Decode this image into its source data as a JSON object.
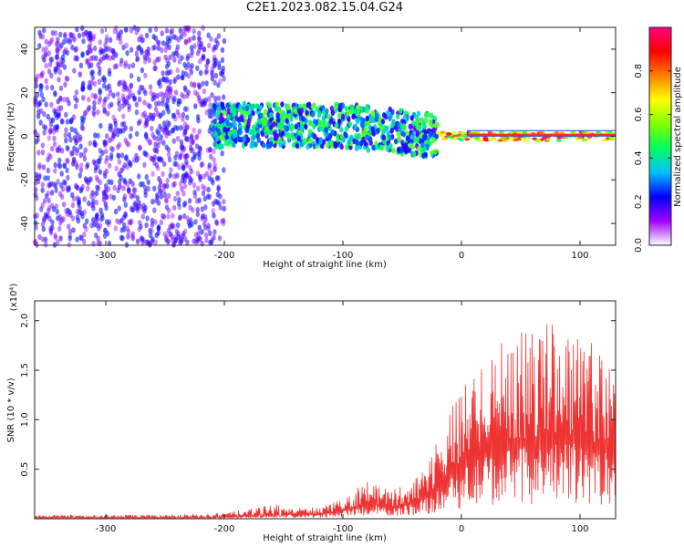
{
  "title": "C2E1.2023.082.15.04.G24",
  "chart_data": [
    {
      "type": "heatmap",
      "xlabel": "Height of straight line (km)",
      "ylabel": "Frequency (Hz)",
      "xlim": [
        -360,
        130
      ],
      "ylim": [
        -50,
        50
      ],
      "x_ticks": [
        -300,
        -200,
        -100,
        0,
        100
      ],
      "y_ticks": [
        -40,
        -20,
        0,
        20,
        40
      ],
      "colorbar": {
        "label": "Normalized spectral amplitude",
        "range": [
          0.0,
          1.0
        ],
        "ticks": [
          0.0,
          0.2,
          0.4,
          0.6,
          0.8
        ],
        "colors": [
          "#ffffff",
          "#a000ff",
          "#0000ff",
          "#00c0ff",
          "#00ff60",
          "#80ff00",
          "#ffff00",
          "#ff8000",
          "#ff0000",
          "#ff0080"
        ]
      },
      "regions": [
        {
          "x_range": [
            -360,
            -200
          ],
          "freq_range": [
            -50,
            50
          ],
          "amplitude_range": [
            0.1,
            0.25
          ],
          "pattern": "broadband noise"
        },
        {
          "x_range": [
            -210,
            -20
          ],
          "freq_center": 5,
          "freq_halfwidth": 10,
          "amplitude_range": [
            0.15,
            0.55
          ],
          "pattern": "scattered band"
        },
        {
          "x_range": [
            -20,
            130
          ],
          "freq_center": 0,
          "freq_halfwidth": 2,
          "amplitude_range": [
            0.4,
            0.95
          ],
          "pattern": "narrow carrier line"
        }
      ]
    },
    {
      "type": "line",
      "xlabel": "Height of straight line (km)",
      "ylabel": "SNR (10 * v/v)",
      "y_exponent_label": "(x10⁴)",
      "xlim": [
        -360,
        130
      ],
      "ylim": [
        0,
        2.2
      ],
      "x_ticks": [
        -300,
        -200,
        -100,
        0,
        100
      ],
      "y_ticks": [
        0.5,
        1.0,
        1.5,
        2.0
      ],
      "color": "#ee3333",
      "series": [
        {
          "x": [
            -360,
            -300,
            -250,
            -200,
            -170,
            -150,
            -120,
            -100,
            -80,
            -60,
            -40,
            -20,
            -10,
            0,
            10,
            20,
            30,
            40,
            60,
            80,
            100,
            115,
            120,
            125,
            130
          ],
          "y": [
            0.02,
            0.02,
            0.02,
            0.03,
            0.06,
            0.08,
            0.09,
            0.15,
            0.3,
            0.22,
            0.3,
            0.6,
            0.85,
            1.0,
            1.15,
            1.3,
            1.35,
            1.45,
            1.45,
            1.55,
            1.5,
            1.35,
            1.3,
            1.45,
            1.3
          ]
        }
      ]
    }
  ]
}
